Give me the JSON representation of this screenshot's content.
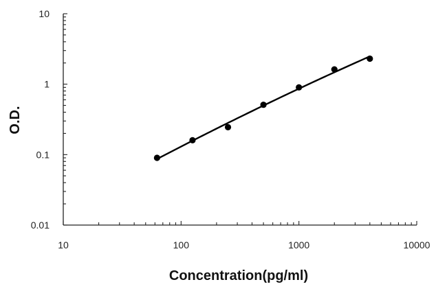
{
  "chart_data": {
    "type": "scatter",
    "title": "",
    "xlabel": "Concentration(pg/ml)",
    "ylabel": "O.D.",
    "x_scale": "log",
    "y_scale": "log",
    "xlim": [
      10,
      10000
    ],
    "ylim": [
      0.01,
      10
    ],
    "x_ticks": [
      "10",
      "100",
      "1000",
      "10000"
    ],
    "y_ticks": [
      "0.01",
      "0.1",
      "1",
      "10"
    ],
    "grid": false,
    "legend": "none",
    "series": [
      {
        "x": [
          62.5,
          125,
          250,
          500,
          1000,
          2000,
          4000
        ],
        "y": [
          0.09,
          0.16,
          0.245,
          0.51,
          0.9,
          1.62,
          2.3
        ],
        "fit_line": true
      }
    ]
  }
}
